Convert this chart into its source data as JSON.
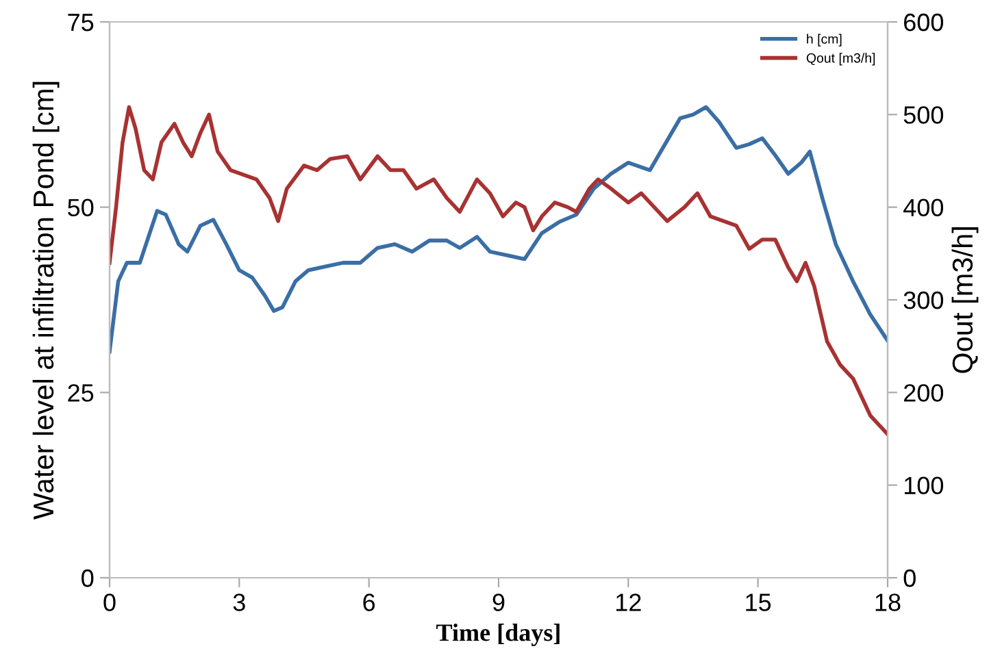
{
  "chart_data": {
    "type": "line",
    "xlabel": "Time [days]",
    "ylabel": "Water level at infiltration Pond [cm]",
    "y2label": "Qout [m3/h]",
    "xlim": [
      0,
      18
    ],
    "xticks": [
      0,
      3,
      6,
      9,
      12,
      15,
      18
    ],
    "ylim": [
      0,
      75
    ],
    "yticks": [
      0,
      25,
      50,
      75
    ],
    "y2lim": [
      0,
      600
    ],
    "y2ticks": [
      0,
      100,
      200,
      300,
      400,
      500,
      600
    ],
    "grid": false,
    "legend": "top right",
    "series": [
      {
        "name": "h [cm]",
        "color": "#3a6ea5",
        "x": [
          0,
          0.2,
          0.4,
          0.7,
          0.9,
          1.1,
          1.3,
          1.6,
          1.8,
          2.1,
          2.4,
          2.7,
          3.0,
          3.3,
          3.6,
          3.8,
          4.0,
          4.3,
          4.6,
          5.0,
          5.4,
          5.8,
          6.2,
          6.6,
          7.0,
          7.4,
          7.8,
          8.1,
          8.5,
          8.8,
          9.2,
          9.6,
          10.0,
          10.4,
          10.8,
          11.2,
          11.6,
          12.0,
          12.5,
          12.9,
          13.2,
          13.5,
          13.8,
          14.1,
          14.5,
          14.8,
          15.1,
          15.4,
          15.7,
          16.0,
          16.2,
          16.5,
          16.8,
          17.2,
          17.6,
          18
        ],
        "values": [
          30.5,
          40,
          42.5,
          42.5,
          46,
          49.5,
          49,
          45,
          44,
          47.5,
          48.3,
          45,
          41.5,
          40.5,
          38,
          36,
          36.5,
          40,
          41.5,
          42,
          42.5,
          42.5,
          44.5,
          45,
          44,
          45.5,
          45.5,
          44.5,
          46,
          44,
          43.5,
          43,
          46.5,
          48,
          49,
          52.5,
          54.5,
          56,
          55,
          59,
          62,
          62.5,
          63.5,
          61.5,
          58,
          58.5,
          59.3,
          57,
          54.5,
          56,
          57.5,
          51,
          45,
          40,
          35.5,
          32
        ]
      },
      {
        "name": "Qout [m3/h]",
        "color": "#a83232",
        "axis": "y2",
        "x": [
          0,
          0.15,
          0.3,
          0.45,
          0.6,
          0.8,
          1.0,
          1.2,
          1.5,
          1.7,
          1.9,
          2.1,
          2.3,
          2.5,
          2.8,
          3.1,
          3.4,
          3.7,
          3.9,
          4.1,
          4.5,
          4.8,
          5.1,
          5.5,
          5.8,
          6.2,
          6.5,
          6.8,
          7.1,
          7.5,
          7.8,
          8.1,
          8.5,
          8.8,
          9.1,
          9.4,
          9.6,
          9.8,
          10.0,
          10.3,
          10.6,
          10.8,
          11.1,
          11.3,
          11.6,
          12.0,
          12.3,
          12.6,
          12.9,
          13.3,
          13.6,
          13.9,
          14.2,
          14.5,
          14.8,
          15.1,
          15.4,
          15.7,
          15.9,
          16.1,
          16.3,
          16.6,
          16.9,
          17.2,
          17.6,
          18
        ],
        "values": [
          340,
          400,
          470,
          508,
          485,
          440,
          430,
          470,
          490,
          470,
          455,
          480,
          500,
          460,
          440,
          435,
          430,
          410,
          385,
          420,
          445,
          440,
          452,
          455,
          430,
          455,
          440,
          440,
          420,
          430,
          410,
          395,
          430,
          415,
          390,
          405,
          400,
          375,
          390,
          405,
          400,
          395,
          420,
          430,
          420,
          405,
          415,
          400,
          385,
          400,
          415,
          390,
          385,
          380,
          355,
          365,
          365,
          335,
          320,
          340,
          315,
          255,
          230,
          215,
          175,
          155
        ]
      }
    ]
  }
}
